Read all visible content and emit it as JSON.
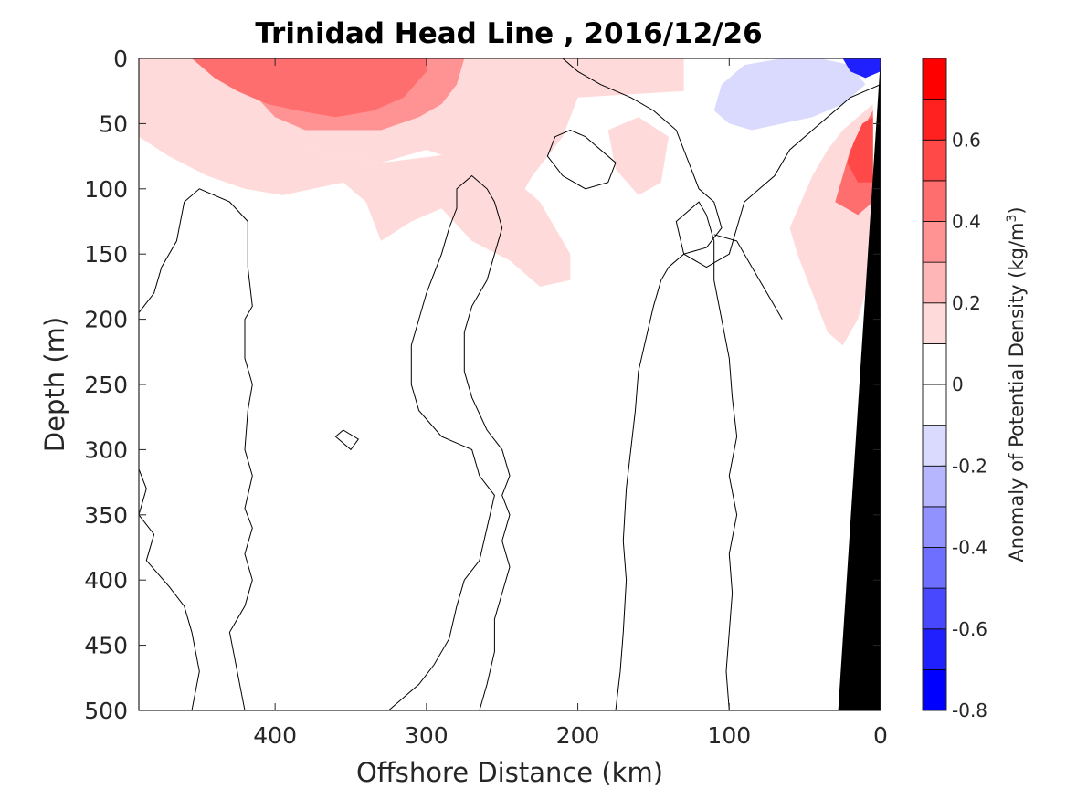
{
  "chart_data": {
    "type": "heatmap",
    "title": "Trinidad Head Line , 2016/12/26",
    "xlabel": "Offshore Distance (km)",
    "ylabel": "Depth (m)",
    "xlim": [
      490,
      0
    ],
    "ylim": [
      0,
      500
    ],
    "x_ticks": [
      400,
      300,
      200,
      100,
      0
    ],
    "x_tick_labels": [
      "400",
      "300",
      "200",
      "100",
      "0"
    ],
    "y_ticks": [
      0,
      50,
      100,
      150,
      200,
      250,
      300,
      350,
      400,
      450,
      500
    ],
    "y_tick_labels": [
      "0",
      "50",
      "100",
      "150",
      "200",
      "250",
      "300",
      "350",
      "400",
      "450",
      "500"
    ],
    "colorbar": {
      "label": "Anomaly of Potential Density (kg/m³)",
      "range": [
        -0.8,
        0.8
      ],
      "ticks": [
        -0.8,
        -0.6,
        -0.4,
        -0.2,
        0,
        0.2,
        0.4,
        0.6
      ],
      "tick_labels": [
        "-0.8",
        "-0.6",
        "-0.4",
        "-0.2",
        "0",
        "0.2",
        "0.4",
        "0.6"
      ],
      "levels": [
        {
          "lo": -0.8,
          "hi": -0.7,
          "color": "#0000ff"
        },
        {
          "lo": -0.7,
          "hi": -0.6,
          "color": "#2020ff"
        },
        {
          "lo": -0.6,
          "hi": -0.5,
          "color": "#4848ff"
        },
        {
          "lo": -0.5,
          "hi": -0.4,
          "color": "#6e6eff"
        },
        {
          "lo": -0.4,
          "hi": -0.3,
          "color": "#9292ff"
        },
        {
          "lo": -0.3,
          "hi": -0.2,
          "color": "#b6b6ff"
        },
        {
          "lo": -0.2,
          "hi": -0.1,
          "color": "#dadaff"
        },
        {
          "lo": -0.1,
          "hi": 0.0,
          "color": "#ffffff"
        },
        {
          "lo": 0.0,
          "hi": 0.1,
          "color": "#ffffff"
        },
        {
          "lo": 0.1,
          "hi": 0.2,
          "color": "#ffdada"
        },
        {
          "lo": 0.2,
          "hi": 0.3,
          "color": "#ffb6b6"
        },
        {
          "lo": 0.3,
          "hi": 0.4,
          "color": "#ff9292"
        },
        {
          "lo": 0.4,
          "hi": 0.5,
          "color": "#ff6e6e"
        },
        {
          "lo": 0.5,
          "hi": 0.6,
          "color": "#ff4848"
        },
        {
          "lo": 0.6,
          "hi": 0.7,
          "color": "#ff2020"
        },
        {
          "lo": 0.7,
          "hi": 0.8,
          "color": "#ff0000"
        }
      ]
    },
    "colors": {
      "positive_strong": "#ff6e6e",
      "positive_mid": "#ff9292",
      "positive_weak": "#ffb6b6",
      "positive_faint": "#ffdada",
      "negative_faint": "#dadaff",
      "negative_strong": "#0000ff",
      "seafloor": "#000000",
      "zero_contour": "#000000"
    },
    "regions": [
      {
        "level": 0.15,
        "points": [
          [
            490,
            0
          ],
          [
            370,
            0
          ],
          [
            305,
            0
          ],
          [
            260,
            0
          ],
          [
            220,
            0
          ],
          [
            195,
            0
          ],
          [
            155,
            0
          ],
          [
            130,
            0
          ],
          [
            130,
            25
          ],
          [
            200,
            30
          ],
          [
            210,
            60
          ],
          [
            230,
            90
          ],
          [
            245,
            120
          ],
          [
            265,
            100
          ],
          [
            275,
            80
          ],
          [
            300,
            70
          ],
          [
            330,
            80
          ],
          [
            355,
            75
          ],
          [
            380,
            70
          ],
          [
            410,
            70
          ],
          [
            440,
            70
          ],
          [
            470,
            70
          ],
          [
            490,
            60
          ]
        ]
      },
      {
        "level": 0.15,
        "points": [
          [
            250,
            0
          ],
          [
            270,
            0
          ],
          [
            285,
            20
          ],
          [
            275,
            50
          ],
          [
            255,
            60
          ],
          [
            235,
            50
          ],
          [
            240,
            20
          ]
        ]
      },
      {
        "level": 0.35,
        "points": [
          [
            490,
            0
          ],
          [
            440,
            0
          ],
          [
            420,
            20
          ],
          [
            400,
            45
          ],
          [
            380,
            55
          ],
          [
            355,
            55
          ],
          [
            330,
            55
          ],
          [
            305,
            45
          ],
          [
            290,
            35
          ],
          [
            280,
            20
          ],
          [
            275,
            0
          ]
        ]
      },
      {
        "level": 0.45,
        "points": [
          [
            455,
            0
          ],
          [
            440,
            15
          ],
          [
            425,
            25
          ],
          [
            405,
            35
          ],
          [
            385,
            40
          ],
          [
            360,
            45
          ],
          [
            335,
            40
          ],
          [
            315,
            30
          ],
          [
            300,
            10
          ],
          [
            300,
            0
          ]
        ]
      },
      {
        "level": 0.15,
        "points": [
          [
            490,
            60
          ],
          [
            470,
            75
          ],
          [
            445,
            90
          ],
          [
            420,
            100
          ],
          [
            395,
            105
          ],
          [
            375,
            100
          ],
          [
            355,
            95
          ],
          [
            340,
            110
          ],
          [
            330,
            140
          ],
          [
            310,
            125
          ],
          [
            290,
            115
          ],
          [
            270,
            140
          ],
          [
            245,
            155
          ],
          [
            225,
            175
          ],
          [
            205,
            170
          ],
          [
            205,
            150
          ],
          [
            215,
            130
          ],
          [
            225,
            110
          ],
          [
            245,
            90
          ],
          [
            265,
            70
          ],
          [
            295,
            75
          ],
          [
            330,
            80
          ],
          [
            380,
            70
          ],
          [
            440,
            70
          ],
          [
            490,
            60
          ]
        ]
      },
      {
        "level": 0.15,
        "points": [
          [
            140,
            60
          ],
          [
            160,
            45
          ],
          [
            180,
            55
          ],
          [
            175,
            85
          ],
          [
            160,
            105
          ],
          [
            145,
            95
          ]
        ]
      },
      {
        "level": 0.15,
        "points": [
          [
            60,
            130
          ],
          [
            45,
            90
          ],
          [
            35,
            70
          ],
          [
            25,
            55
          ],
          [
            15,
            45
          ],
          [
            10,
            40
          ],
          [
            5,
            35
          ],
          [
            5,
            160
          ],
          [
            15,
            200
          ],
          [
            25,
            220
          ],
          [
            35,
            210
          ],
          [
            45,
            180
          ],
          [
            55,
            150
          ]
        ]
      },
      {
        "level": 0.45,
        "points": [
          [
            30,
            110
          ],
          [
            25,
            90
          ],
          [
            20,
            70
          ],
          [
            15,
            60
          ],
          [
            10,
            50
          ],
          [
            5,
            40
          ],
          [
            5,
            110
          ],
          [
            15,
            120
          ]
        ]
      },
      {
        "level": 0.55,
        "points": [
          [
            22,
            80
          ],
          [
            18,
            65
          ],
          [
            12,
            50
          ],
          [
            5,
            45
          ],
          [
            5,
            95
          ],
          [
            15,
            95
          ]
        ]
      },
      {
        "level": -0.15,
        "points": [
          [
            105,
            20
          ],
          [
            90,
            5
          ],
          [
            65,
            0
          ],
          [
            40,
            0
          ],
          [
            20,
            5
          ],
          [
            10,
            20
          ],
          [
            25,
            35
          ],
          [
            45,
            45
          ],
          [
            65,
            50
          ],
          [
            85,
            55
          ],
          [
            100,
            50
          ],
          [
            110,
            40
          ]
        ]
      },
      {
        "level": -0.7,
        "points": [
          [
            25,
            0
          ],
          [
            10,
            0
          ],
          [
            0,
            0
          ],
          [
            0,
            10
          ],
          [
            10,
            15
          ],
          [
            20,
            10
          ]
        ]
      }
    ],
    "zero_contours": [
      [
        [
          505,
          130
        ],
        [
          492,
          150
        ],
        [
          495,
          155
        ]
      ],
      [
        [
          420,
          500
        ],
        [
          425,
          470
        ],
        [
          430,
          440
        ],
        [
          420,
          420
        ],
        [
          415,
          400
        ],
        [
          420,
          380
        ],
        [
          415,
          360
        ],
        [
          420,
          345
        ],
        [
          415,
          320
        ],
        [
          420,
          300
        ],
        [
          418,
          270
        ],
        [
          415,
          250
        ],
        [
          420,
          230
        ],
        [
          420,
          200
        ],
        [
          415,
          190
        ],
        [
          418,
          160
        ],
        [
          418,
          125
        ],
        [
          430,
          110
        ],
        [
          450,
          100
        ],
        [
          460,
          110
        ],
        [
          465,
          140
        ],
        [
          475,
          160
        ],
        [
          480,
          180
        ],
        [
          490,
          195
        ],
        [
          505,
          205
        ],
        [
          500,
          230
        ],
        [
          495,
          270
        ],
        [
          500,
          300
        ],
        [
          490,
          315
        ],
        [
          485,
          330
        ],
        [
          490,
          350
        ],
        [
          480,
          365
        ],
        [
          485,
          385
        ],
        [
          470,
          405
        ],
        [
          460,
          420
        ],
        [
          455,
          440
        ],
        [
          450,
          470
        ],
        [
          455,
          500
        ]
      ],
      [
        [
          325,
          500
        ],
        [
          315,
          490
        ],
        [
          305,
          480
        ],
        [
          295,
          465
        ],
        [
          285,
          445
        ],
        [
          280,
          420
        ],
        [
          275,
          400
        ],
        [
          265,
          385
        ],
        [
          260,
          360
        ],
        [
          255,
          335
        ],
        [
          265,
          320
        ],
        [
          270,
          300
        ],
        [
          290,
          290
        ],
        [
          305,
          270
        ],
        [
          310,
          250
        ],
        [
          310,
          220
        ],
        [
          305,
          200
        ],
        [
          300,
          180
        ],
        [
          295,
          165
        ],
        [
          290,
          150
        ],
        [
          285,
          130
        ],
        [
          280,
          115
        ],
        [
          280,
          100
        ],
        [
          270,
          90
        ],
        [
          260,
          100
        ],
        [
          255,
          110
        ],
        [
          250,
          130
        ],
        [
          255,
          150
        ],
        [
          260,
          170
        ],
        [
          270,
          190
        ],
        [
          275,
          210
        ],
        [
          275,
          240
        ],
        [
          270,
          260
        ],
        [
          260,
          285
        ],
        [
          250,
          300
        ],
        [
          245,
          320
        ],
        [
          250,
          335
        ],
        [
          245,
          350
        ],
        [
          250,
          370
        ],
        [
          245,
          390
        ],
        [
          250,
          410
        ],
        [
          255,
          430
        ],
        [
          255,
          455
        ],
        [
          260,
          480
        ],
        [
          265,
          500
        ]
      ],
      [
        [
          175,
          500
        ],
        [
          172,
          470
        ],
        [
          170,
          440
        ],
        [
          168,
          400
        ],
        [
          170,
          370
        ],
        [
          168,
          330
        ],
        [
          165,
          300
        ],
        [
          162,
          270
        ],
        [
          160,
          240
        ],
        [
          155,
          215
        ],
        [
          150,
          190
        ],
        [
          145,
          170
        ],
        [
          140,
          160
        ],
        [
          130,
          150
        ],
        [
          115,
          145
        ],
        [
          105,
          130
        ],
        [
          110,
          110
        ],
        [
          120,
          100
        ],
        [
          125,
          85
        ],
        [
          130,
          70
        ],
        [
          135,
          55
        ],
        [
          150,
          40
        ],
        [
          165,
          30
        ],
        [
          185,
          20
        ],
        [
          200,
          10
        ],
        [
          210,
          0
        ]
      ],
      [
        [
          100,
          500
        ],
        [
          102,
          470
        ],
        [
          100,
          440
        ],
        [
          98,
          410
        ],
        [
          100,
          380
        ],
        [
          95,
          350
        ],
        [
          100,
          320
        ],
        [
          95,
          290
        ],
        [
          98,
          260
        ],
        [
          100,
          230
        ],
        [
          105,
          200
        ],
        [
          110,
          170
        ],
        [
          110,
          140
        ],
        [
          115,
          120
        ],
        [
          120,
          110
        ],
        [
          135,
          125
        ],
        [
          130,
          150
        ],
        [
          115,
          160
        ],
        [
          100,
          150
        ],
        [
          95,
          130
        ],
        [
          90,
          110
        ],
        [
          80,
          100
        ],
        [
          70,
          90
        ],
        [
          65,
          80
        ],
        [
          60,
          70
        ],
        [
          50,
          60
        ],
        [
          40,
          50
        ],
        [
          30,
          40
        ],
        [
          20,
          30
        ],
        [
          10,
          25
        ],
        [
          0,
          20
        ]
      ],
      [
        [
          110,
          135
        ],
        [
          95,
          140
        ],
        [
          85,
          160
        ],
        [
          75,
          180
        ],
        [
          70,
          190
        ],
        [
          65,
          200
        ]
      ]
    ],
    "closed_contours": [
      [
        [
          195,
          60
        ],
        [
          185,
          70
        ],
        [
          175,
          80
        ],
        [
          180,
          95
        ],
        [
          195,
          100
        ],
        [
          210,
          90
        ],
        [
          220,
          75
        ],
        [
          215,
          60
        ],
        [
          205,
          55
        ]
      ],
      [
        [
          360,
          290
        ],
        [
          355,
          295
        ],
        [
          350,
          300
        ],
        [
          345,
          292
        ],
        [
          355,
          285
        ]
      ]
    ],
    "seafloor": [
      [
        28,
        500
      ],
      [
        0,
        0
      ],
      [
        0,
        500
      ]
    ]
  }
}
